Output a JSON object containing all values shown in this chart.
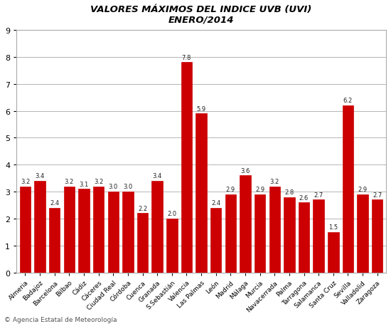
{
  "title_line1": "VALORES MÁXIMOS DEL INDICE UVB (UVI)",
  "title_line2": "ENERO/2014",
  "categories": [
    "Almeria",
    "Badajoz",
    "Barcelona",
    "Bilbao",
    "Cádiz",
    "Cáceres",
    "Ciudad Real",
    "Córdoba",
    "Cuenca",
    "Granada",
    "S.Sebastián",
    "Valencia",
    "Las Palmas",
    "León",
    "Madrid",
    "Málaga",
    "Murcia",
    "Navacerrada",
    "Palma",
    "Tarragona",
    "Salamanca",
    "Santa Cruz",
    "Sevilla",
    "Valladolid",
    "Zaragoza"
  ],
  "values": [
    3.2,
    3.4,
    2.4,
    3.2,
    3.1,
    3.2,
    3.0,
    3.0,
    2.2,
    3.4,
    2.0,
    7.8,
    5.9,
    2.4,
    2.9,
    3.6,
    2.9,
    3.2,
    2.8,
    2.6,
    2.7,
    1.5,
    6.2,
    2.9,
    2.7
  ],
  "bar_color": "#cc0000",
  "ylim": [
    0,
    9
  ],
  "yticks": [
    0,
    1,
    2,
    3,
    4,
    5,
    6,
    7,
    8,
    9
  ],
  "grid_color": "#aaaaaa",
  "background_color": "#ffffff",
  "border_color": "#aaaaaa",
  "footer_text": "© Agencia Estatal de Meteorología",
  "title_fontsize": 9.5,
  "bar_label_fontsize": 6.0,
  "tick_label_fontsize": 6.5
}
